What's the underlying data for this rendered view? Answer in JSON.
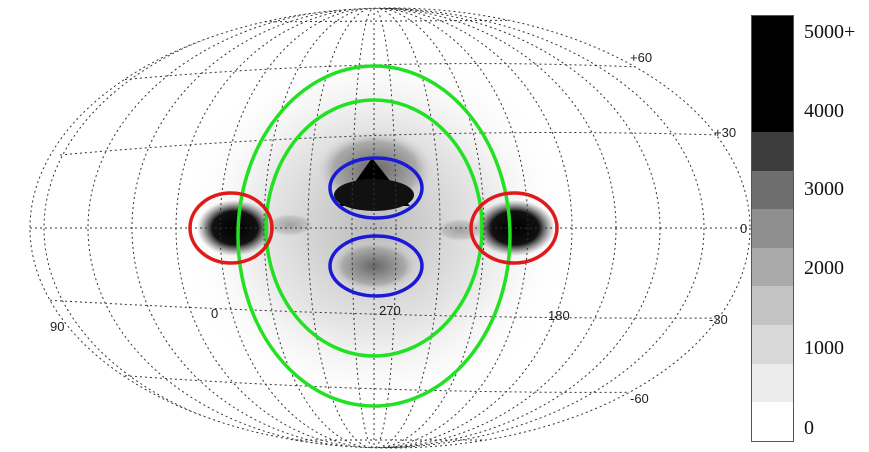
{
  "latitude_labels": [
    "+60",
    "+30",
    "0",
    "-30",
    "-60"
  ],
  "longitude_labels": [
    "90",
    "0",
    "270",
    "180"
  ],
  "colorbar": {
    "labels": [
      "5000+",
      "4000",
      "3000",
      "2000",
      "1000",
      "0"
    ],
    "shades": [
      "#000000",
      "#000000",
      "#000000",
      "#3c3c3c",
      "#6e6e6e",
      "#8f8f8f",
      "#aaaaaa",
      "#c3c3c3",
      "#d8d8d8",
      "#ececec",
      "#ffffff"
    ]
  },
  "overlays": [
    {
      "name": "red-ellipse-left",
      "color": "#e01a1a"
    },
    {
      "name": "red-ellipse-right",
      "color": "#e01a1a"
    },
    {
      "name": "blue-ellipse-upper",
      "color": "#1a1ad6"
    },
    {
      "name": "blue-ellipse-lower",
      "color": "#1a1ad6"
    },
    {
      "name": "green-ellipse-outer",
      "color": "#22e022"
    },
    {
      "name": "green-ellipse-inner",
      "color": "#22e022"
    }
  ]
}
